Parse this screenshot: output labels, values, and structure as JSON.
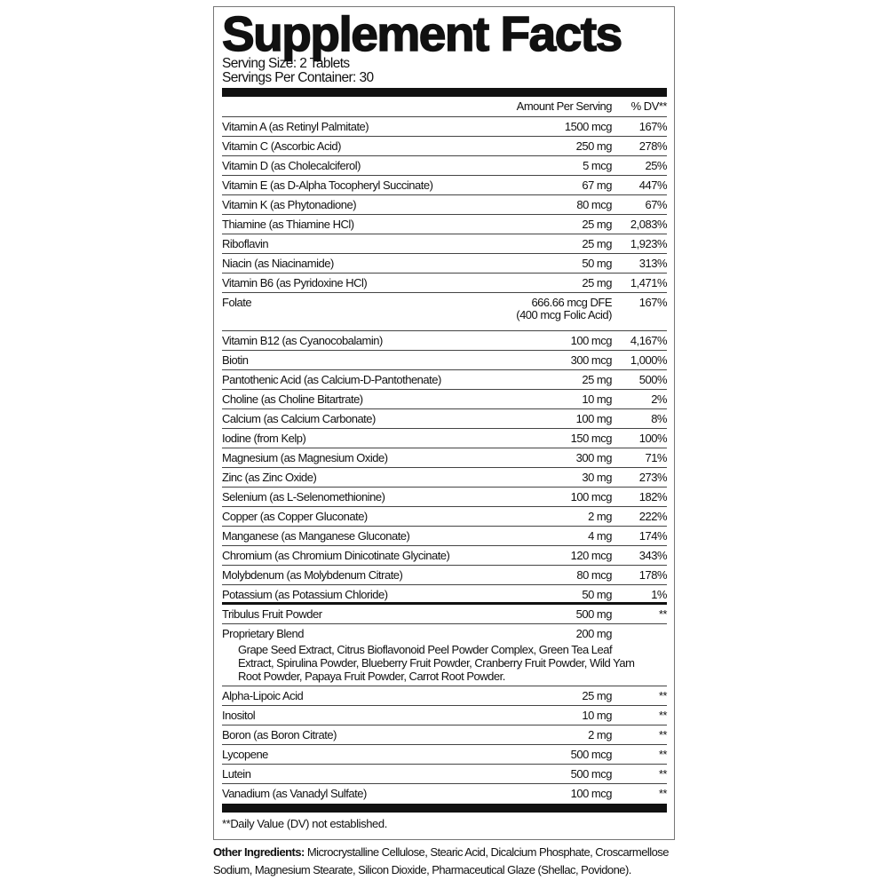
{
  "title": "Supplement Facts",
  "serving_size": "Serving Size: 2 Tablets",
  "servings_per_container": "Servings Per Container: 30",
  "header": {
    "amount": "Amount Per Serving",
    "dv": "% DV**"
  },
  "nutrients": [
    {
      "name": "Vitamin A (as Retinyl Palmitate)",
      "amount": "1500 mcg",
      "dv": "167%"
    },
    {
      "name": "Vitamin C (Ascorbic Acid)",
      "amount": "250 mg",
      "dv": "278%"
    },
    {
      "name": "Vitamin D (as Cholecalciferol)",
      "amount": "5 mcg",
      "dv": "25%"
    },
    {
      "name": "Vitamin E (as D-Alpha Tocopheryl Succinate)",
      "amount": "67 mg",
      "dv": "447%"
    },
    {
      "name": "Vitamin K (as Phytonadione)",
      "amount": "80 mcg",
      "dv": "67%"
    },
    {
      "name": "Thiamine (as Thiamine HCl)",
      "amount": "25 mg",
      "dv": "2,083%"
    },
    {
      "name": "Riboflavin",
      "amount": "25 mg",
      "dv": "1,923%"
    },
    {
      "name": "Niacin (as Niacinamide)",
      "amount": "50 mg",
      "dv": "313%"
    },
    {
      "name": "Vitamin B6 (as Pyridoxine HCl)",
      "amount": "25 mg",
      "dv": "1,471%"
    },
    {
      "name": "Folate",
      "amount": "666.66 mcg DFE",
      "amount2": "(400 mcg Folic Acid)",
      "dv": "167%"
    },
    {
      "name": "Vitamin B12 (as Cyanocobalamin)",
      "amount": "100 mcg",
      "dv": "4,167%"
    },
    {
      "name": "Biotin",
      "amount": "300 mcg",
      "dv": "1,000%"
    },
    {
      "name": "Pantothenic Acid (as Calcium-D-Pantothenate)",
      "amount": "25 mg",
      "dv": "500%"
    },
    {
      "name": "Choline (as Choline Bitartrate)",
      "amount": "10 mg",
      "dv": "2%"
    },
    {
      "name": "Calcium (as Calcium Carbonate)",
      "amount": "100 mg",
      "dv": "8%"
    },
    {
      "name": "Iodine (from Kelp)",
      "amount": "150 mcg",
      "dv": "100%"
    },
    {
      "name": "Magnesium (as Magnesium Oxide)",
      "amount": "300 mg",
      "dv": "71%"
    },
    {
      "name": "Zinc (as Zinc Oxide)",
      "amount": "30 mg",
      "dv": "273%"
    },
    {
      "name": "Selenium (as L-Selenomethionine)",
      "amount": "100 mcg",
      "dv": "182%"
    },
    {
      "name": "Copper (as Copper Gluconate)",
      "amount": "2 mg",
      "dv": "222%"
    },
    {
      "name": "Manganese (as Manganese Gluconate)",
      "amount": "4 mg",
      "dv": "174%"
    },
    {
      "name": "Chromium (as Chromium Dinicotinate Glycinate)",
      "amount": "120 mcg",
      "dv": "343%"
    },
    {
      "name": "Molybdenum (as Molybdenum Citrate)",
      "amount": "80 mcg",
      "dv": "178%"
    },
    {
      "name": "Potassium (as Potassium Chloride)",
      "amount": "50 mg",
      "dv": "1%"
    }
  ],
  "others": [
    {
      "name": "Tribulus Fruit Powder",
      "amount": "500 mg",
      "dv": "**"
    },
    {
      "name": "Proprietary Blend",
      "amount": "200 mg",
      "dv": "",
      "desc": "Grape Seed Extract, Citrus Bioflavonoid Peel Powder Complex, Green Tea Leaf Extract, Spirulina Powder, Blueberry Fruit Powder, Cranberry Fruit Powder, Wild Yam Root Powder, Papaya Fruit Powder, Carrot Root Powder."
    },
    {
      "name": "Alpha-Lipoic Acid",
      "amount": "25 mg",
      "dv": "**"
    },
    {
      "name": "Inositol",
      "amount": "10 mg",
      "dv": "**"
    },
    {
      "name": "Boron (as Boron Citrate)",
      "amount": "2 mg",
      "dv": "**"
    },
    {
      "name": "Lycopene",
      "amount": "500 mcg",
      "dv": "**"
    },
    {
      "name": "Lutein",
      "amount": "500 mcg",
      "dv": "**"
    },
    {
      "name": "Vanadium (as Vanadyl Sulfate)",
      "amount": "100 mcg",
      "dv": "**"
    }
  ],
  "footnote": "**Daily Value (DV) not established.",
  "other_ingredients": {
    "label": "Other Ingredients:",
    "text": " Microcrystalline Cellulose, Stearic Acid, Dicalcium Phosphate, Croscarmellose Sodium, Magnesium Stearate, Silicon Dioxide, Pharmaceutical Glaze (Shellac, Povidone)."
  }
}
